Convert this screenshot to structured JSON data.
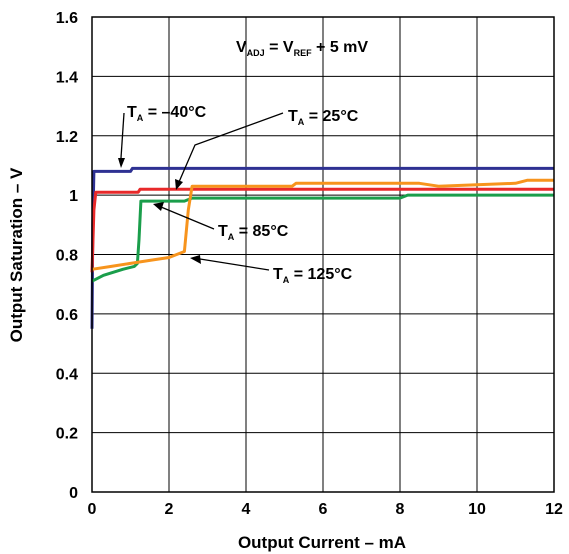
{
  "chart_data": {
    "type": "line",
    "title": "",
    "xlabel": "Output Current – mA",
    "ylabel": "Output Saturation – V",
    "xlim": [
      0,
      12
    ],
    "ylim": [
      0,
      1.6
    ],
    "x_ticks": [
      "0",
      "2",
      "4",
      "6",
      "8",
      "10",
      "12"
    ],
    "y_ticks": [
      "0",
      "0.2",
      "0.4",
      "0.6",
      "0.8",
      "1",
      "1.2",
      "1.4",
      "1.6"
    ],
    "grid": true,
    "condition": {
      "main": "V",
      "sub": "ADJ",
      "eq": " = V",
      "sub2": "REF",
      "rest": " + 5 mV"
    },
    "series": [
      {
        "name_main": "T",
        "name_sub": "A",
        "name_rest": " = –40°C",
        "color": "#2e3192",
        "points": [
          [
            0,
            0.55
          ],
          [
            0.02,
            0.9
          ],
          [
            0.05,
            1.08
          ],
          [
            1.0,
            1.08
          ],
          [
            1.05,
            1.09
          ],
          [
            12,
            1.09
          ]
        ]
      },
      {
        "name_main": "T",
        "name_sub": "A",
        "name_rest": " = 25°C",
        "color": "#e8292a",
        "points": [
          [
            0,
            0.74
          ],
          [
            0.05,
            0.95
          ],
          [
            0.1,
            1.01
          ],
          [
            1.2,
            1.01
          ],
          [
            1.25,
            1.02
          ],
          [
            12,
            1.02
          ]
        ]
      },
      {
        "name_main": "T",
        "name_sub": "A",
        "name_rest": " = 85°C",
        "color": "#1a9e4b",
        "points": [
          [
            0,
            0.71
          ],
          [
            0.3,
            0.73
          ],
          [
            0.8,
            0.75
          ],
          [
            1.1,
            0.76
          ],
          [
            1.18,
            0.77
          ],
          [
            1.22,
            0.85
          ],
          [
            1.27,
            0.98
          ],
          [
            2.4,
            0.98
          ],
          [
            2.6,
            0.99
          ],
          [
            8.0,
            0.99
          ],
          [
            8.2,
            1.0
          ],
          [
            12,
            1.0
          ]
        ]
      },
      {
        "name_main": "T",
        "name_sub": "A",
        "name_rest": " = 125°C",
        "color": "#f7941d",
        "points": [
          [
            0,
            0.75
          ],
          [
            0.5,
            0.76
          ],
          [
            1.0,
            0.77
          ],
          [
            1.5,
            0.78
          ],
          [
            2.0,
            0.79
          ],
          [
            2.4,
            0.81
          ],
          [
            2.5,
            0.95
          ],
          [
            2.6,
            1.03
          ],
          [
            5.2,
            1.03
          ],
          [
            5.3,
            1.04
          ],
          [
            8.5,
            1.04
          ],
          [
            9.0,
            1.03
          ],
          [
            11.0,
            1.04
          ],
          [
            11.3,
            1.05
          ],
          [
            12,
            1.05
          ]
        ]
      }
    ]
  }
}
